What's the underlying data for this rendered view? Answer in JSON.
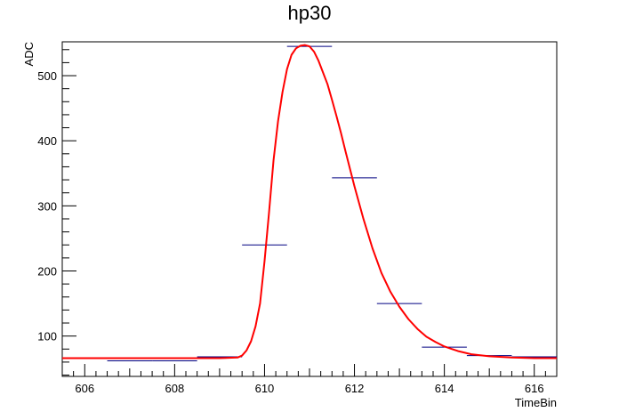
{
  "chart_data": {
    "type": "line",
    "title": "hp30",
    "xlabel": "TimeBin",
    "ylabel": "ADC",
    "xlim": [
      605.5,
      616.5
    ],
    "ylim": [
      38,
      552
    ],
    "x_ticks": [
      606,
      608,
      610,
      612,
      614,
      616
    ],
    "y_ticks": [
      100,
      200,
      300,
      400,
      500
    ],
    "grid": false,
    "histogram": {
      "color": "#000080",
      "bins": [
        {
          "x_start": 605.5,
          "x_end": 606.5,
          "value": 66
        },
        {
          "x_start": 606.5,
          "x_end": 607.5,
          "value": 62
        },
        {
          "x_start": 607.5,
          "x_end": 608.5,
          "value": 62
        },
        {
          "x_start": 608.5,
          "x_end": 609.5,
          "value": 68
        },
        {
          "x_start": 609.5,
          "x_end": 610.5,
          "value": 240
        },
        {
          "x_start": 610.5,
          "x_end": 611.5,
          "value": 545
        },
        {
          "x_start": 611.5,
          "x_end": 612.5,
          "value": 343
        },
        {
          "x_start": 612.5,
          "x_end": 613.5,
          "value": 150
        },
        {
          "x_start": 613.5,
          "x_end": 614.5,
          "value": 83
        },
        {
          "x_start": 614.5,
          "x_end": 615.5,
          "value": 70
        },
        {
          "x_start": 615.5,
          "x_end": 616.5,
          "value": 68
        }
      ]
    },
    "fit_curve": {
      "color": "#ff0000",
      "x": [
        605.5,
        609.0,
        609.4,
        609.5,
        609.6,
        609.7,
        609.8,
        609.9,
        610.0,
        610.1,
        610.2,
        610.3,
        610.4,
        610.5,
        610.6,
        610.7,
        610.8,
        610.9,
        611.0,
        611.1,
        611.2,
        611.3,
        611.4,
        611.5,
        611.6,
        611.7,
        611.8,
        611.9,
        612.0,
        612.2,
        612.4,
        612.6,
        612.8,
        613.0,
        613.2,
        613.4,
        613.6,
        613.8,
        614.0,
        614.3,
        614.6,
        615.0,
        615.5,
        616.0,
        616.5
      ],
      "y": [
        66,
        66,
        67,
        70,
        78,
        92,
        115,
        150,
        215,
        290,
        370,
        430,
        475,
        510,
        532,
        542,
        546,
        547,
        545,
        537,
        523,
        505,
        487,
        463,
        438,
        412,
        384,
        357,
        330,
        280,
        235,
        197,
        168,
        145,
        126,
        111,
        99,
        91,
        84,
        77,
        72,
        69,
        67,
        66,
        66
      ]
    }
  }
}
